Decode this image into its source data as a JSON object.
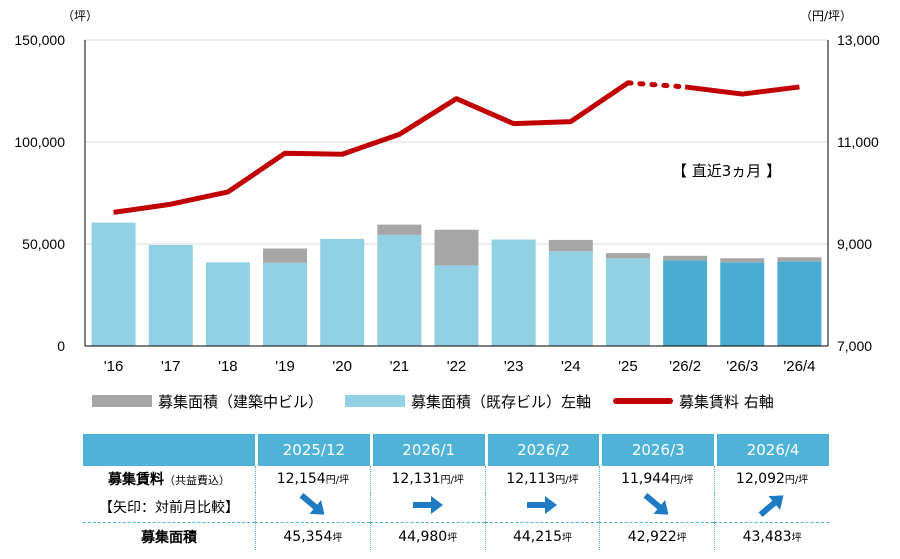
{
  "chart_data": {
    "type": "bar+line",
    "categories": [
      "'16",
      "'17",
      "'18",
      "'19",
      "'20",
      "'21",
      "'22",
      "'23",
      "'24",
      "'25",
      "'26/2",
      "'26/3",
      "'26/4"
    ],
    "left_axis": {
      "unit": "（坪）",
      "ylim": [
        0,
        150000
      ],
      "ticks": [
        "0",
        "50,000",
        "100,000",
        "150,000"
      ],
      "tick_values": [
        0,
        50000,
        100000,
        150000
      ]
    },
    "right_axis": {
      "unit": "（円/坪）",
      "ylim": [
        7000,
        13000
      ],
      "ticks": [
        "7,000",
        "9,000",
        "11,000",
        "13,000"
      ],
      "tick_values": [
        7000,
        9000,
        11000,
        13000
      ]
    },
    "series": [
      {
        "name": "募集面積（既存ビル）左軸",
        "type": "bar",
        "color": "#92d0e4",
        "recent_color": "#4bacd1",
        "values": [
          60500,
          49500,
          41000,
          40800,
          52500,
          54500,
          39500,
          52200,
          46500,
          43000,
          42000,
          41000,
          41500
        ]
      },
      {
        "name": "募集面積（建築中ビル）",
        "type": "bar",
        "color": "#a6a6a6",
        "values": [
          0,
          0,
          0,
          7000,
          0,
          5000,
          17500,
          0,
          5500,
          2500,
          2200,
          2000,
          2000
        ]
      },
      {
        "name": "募集賃料 右軸",
        "type": "line",
        "color": "#c00000",
        "values": [
          9620,
          9780,
          10020,
          10780,
          10760,
          11150,
          11850,
          11360,
          11400,
          12160,
          12080,
          11940,
          12080
        ]
      }
    ],
    "annotation": "【 直近3ヵ月 】"
  },
  "legend": {
    "construction": "募集面積（建築中ビル）",
    "existing": "募集面積（既存ビル）左軸",
    "rent": "募集賃料 右軸"
  },
  "table": {
    "months": [
      "2025/12",
      "2026/1",
      "2026/2",
      "2026/3",
      "2026/4"
    ],
    "rent_label": "募集賃料",
    "rent_note": "（共益費込）",
    "arrow_note": "【矢印：対前月比較】",
    "area_label": "募集面積",
    "rent_unit": "円/坪",
    "area_unit": "坪",
    "rents": [
      "12,154",
      "12,131",
      "12,113",
      "11,944",
      "12,092"
    ],
    "areas": [
      "45,354",
      "44,980",
      "44,215",
      "42,922",
      "43,483"
    ],
    "arrows": [
      "down",
      "right",
      "right",
      "down",
      "up"
    ]
  }
}
